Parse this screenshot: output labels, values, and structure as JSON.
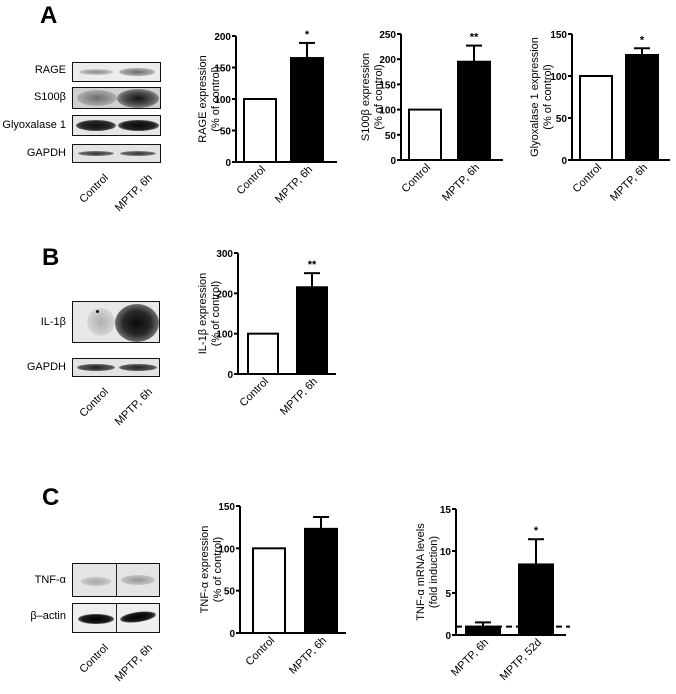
{
  "panels": {
    "A": {
      "letter": "A",
      "blot": {
        "rows": [
          {
            "label": "RAGE"
          },
          {
            "label": "S100β"
          },
          {
            "label": "Glyoxalase 1"
          },
          {
            "label": "GAPDH"
          }
        ],
        "lanes": [
          "Control",
          "MPTP, 6h"
        ]
      }
    },
    "B": {
      "letter": "B",
      "blot": {
        "rows": [
          {
            "label": "IL-1β"
          },
          {
            "label": "GAPDH"
          }
        ],
        "lanes": [
          "Control",
          "MPTP, 6h"
        ]
      }
    },
    "C": {
      "letter": "C",
      "blot": {
        "rows": [
          {
            "label": "TNF-α"
          },
          {
            "label": "β–actin"
          }
        ],
        "lanes": [
          "Control",
          "MPTP, 6h"
        ]
      }
    }
  },
  "chart_data": [
    {
      "id": "A-RAGE",
      "type": "bar",
      "title": "",
      "ylabel": "RAGE expression\n(% of control)",
      "ylabel_line1": "RAGE expression",
      "ylabel_line2": "(% of control)",
      "xlabel": "",
      "categories": [
        "Control",
        "MPTP, 6h"
      ],
      "values": [
        100,
        165
      ],
      "errors": [
        0,
        24
      ],
      "bar_fill": [
        "#ffffff",
        "#000000"
      ],
      "significance": [
        "",
        "*"
      ],
      "ylim": [
        0,
        200
      ],
      "yticks": [
        0,
        50,
        100,
        150,
        200
      ],
      "grid": false,
      "legend": null
    },
    {
      "id": "A-S100b",
      "type": "bar",
      "title": "",
      "ylabel_line1": "S100β expression",
      "ylabel_line2": "(% of control)",
      "xlabel": "",
      "categories": [
        "Control",
        "MPTP, 6h"
      ],
      "values": [
        100,
        195
      ],
      "errors": [
        0,
        32
      ],
      "bar_fill": [
        "#ffffff",
        "#000000"
      ],
      "significance": [
        "",
        "**"
      ],
      "ylim": [
        0,
        250
      ],
      "yticks": [
        0,
        50,
        100,
        150,
        200,
        250
      ],
      "grid": false,
      "legend": null
    },
    {
      "id": "A-Glo1",
      "type": "bar",
      "title": "",
      "ylabel_line1": "Glyoxalase 1 expression",
      "ylabel_line2": "(% of control)",
      "xlabel": "",
      "categories": [
        "Control",
        "MPTP, 6h"
      ],
      "values": [
        100,
        125
      ],
      "errors": [
        0,
        8
      ],
      "bar_fill": [
        "#ffffff",
        "#000000"
      ],
      "significance": [
        "",
        "*"
      ],
      "ylim": [
        0,
        150
      ],
      "yticks": [
        0,
        50,
        100,
        150
      ],
      "grid": false,
      "legend": null
    },
    {
      "id": "B-IL1b",
      "type": "bar",
      "title": "",
      "ylabel_line1": "IL-1β expression",
      "ylabel_line2": "(% of control)",
      "xlabel": "",
      "categories": [
        "Control",
        "MPTP, 6h"
      ],
      "values": [
        100,
        215
      ],
      "errors": [
        0,
        35
      ],
      "bar_fill": [
        "#ffffff",
        "#000000"
      ],
      "significance": [
        "",
        "**"
      ],
      "ylim": [
        0,
        300
      ],
      "yticks": [
        0,
        100,
        200,
        300
      ],
      "grid": false,
      "legend": null
    },
    {
      "id": "C-TNFa-protein",
      "type": "bar",
      "title": "",
      "ylabel_line1": "TNF-α expression",
      "ylabel_line2": "(% of control)",
      "xlabel": "",
      "categories": [
        "Control",
        "MPTP, 6h"
      ],
      "values": [
        100,
        123
      ],
      "errors": [
        0,
        14
      ],
      "bar_fill": [
        "#ffffff",
        "#000000"
      ],
      "significance": [
        "",
        ""
      ],
      "ylim": [
        0,
        150
      ],
      "yticks": [
        0,
        50,
        100,
        150
      ],
      "grid": false,
      "legend": null
    },
    {
      "id": "C-TNFa-mRNA",
      "type": "bar",
      "title": "",
      "ylabel_line1": "TNF-α mRNA levels",
      "ylabel_line2": "(fold induction)",
      "xlabel": "",
      "categories": [
        "MPTP, 6h",
        "MPTP, 52d"
      ],
      "values": [
        1.0,
        8.4
      ],
      "errors": [
        0.5,
        3.0
      ],
      "bar_fill": [
        "#000000",
        "#000000"
      ],
      "significance": [
        "",
        "*"
      ],
      "ylim": [
        0,
        15
      ],
      "yticks": [
        0,
        5,
        10,
        15
      ],
      "reference_line": {
        "y": 1,
        "style": "dashed"
      },
      "grid": false,
      "legend": null
    }
  ]
}
